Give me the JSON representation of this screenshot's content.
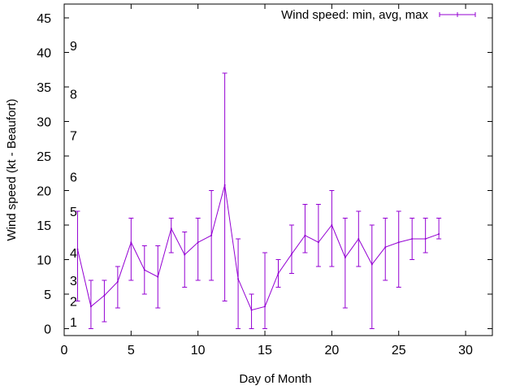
{
  "chart_data": {
    "type": "line",
    "title": "",
    "xlabel": "Day of Month",
    "ylabel": "Wind speed (kt - Beaufort)",
    "xlim": [
      0,
      32
    ],
    "ylim": [
      -1,
      47
    ],
    "x_ticks": [
      0,
      5,
      10,
      15,
      20,
      25,
      30
    ],
    "y_ticks": [
      0,
      5,
      10,
      15,
      20,
      25,
      30,
      35,
      40,
      45
    ],
    "grid": false,
    "legend_position": "top-right",
    "series": [
      {
        "name": "Wind speed: min, avg, max",
        "color": "#9400d3",
        "x": [
          1,
          2,
          3,
          4,
          5,
          6,
          7,
          8,
          9,
          10,
          11,
          12,
          13,
          14,
          15,
          16,
          17,
          18,
          19,
          20,
          21,
          22,
          23,
          24,
          25,
          26,
          27,
          28
        ],
        "avg": [
          11.5,
          3.2,
          4.8,
          6.8,
          12.5,
          8.5,
          7.5,
          14.5,
          10.7,
          12.5,
          13.5,
          20.8,
          7.2,
          2.7,
          3.2,
          8,
          10.8,
          13.5,
          12.5,
          15,
          10.3,
          13,
          9.3,
          11.8,
          12.5,
          13,
          13,
          13.7
        ],
        "min": [
          4,
          0,
          1,
          3,
          7,
          5,
          3,
          11,
          6,
          7,
          7,
          4,
          0,
          0,
          0,
          6,
          8,
          11,
          9,
          9,
          3,
          9,
          0,
          7,
          6,
          10,
          11,
          13
        ],
        "max": [
          17,
          7,
          7,
          9,
          16,
          12,
          12,
          16,
          14,
          16,
          20,
          37,
          13,
          5,
          11,
          10,
          15,
          18,
          18,
          20,
          16,
          17,
          15,
          16,
          17,
          16,
          16,
          16
        ]
      }
    ],
    "beaufort_labels": [
      {
        "label": "1",
        "y": 1
      },
      {
        "label": "2",
        "y": 4
      },
      {
        "label": "3",
        "y": 7
      },
      {
        "label": "4",
        "y": 11
      },
      {
        "label": "5",
        "y": 17
      },
      {
        "label": "6",
        "y": 22
      },
      {
        "label": "7",
        "y": 28
      },
      {
        "label": "8",
        "y": 34
      },
      {
        "label": "9",
        "y": 41
      }
    ]
  }
}
